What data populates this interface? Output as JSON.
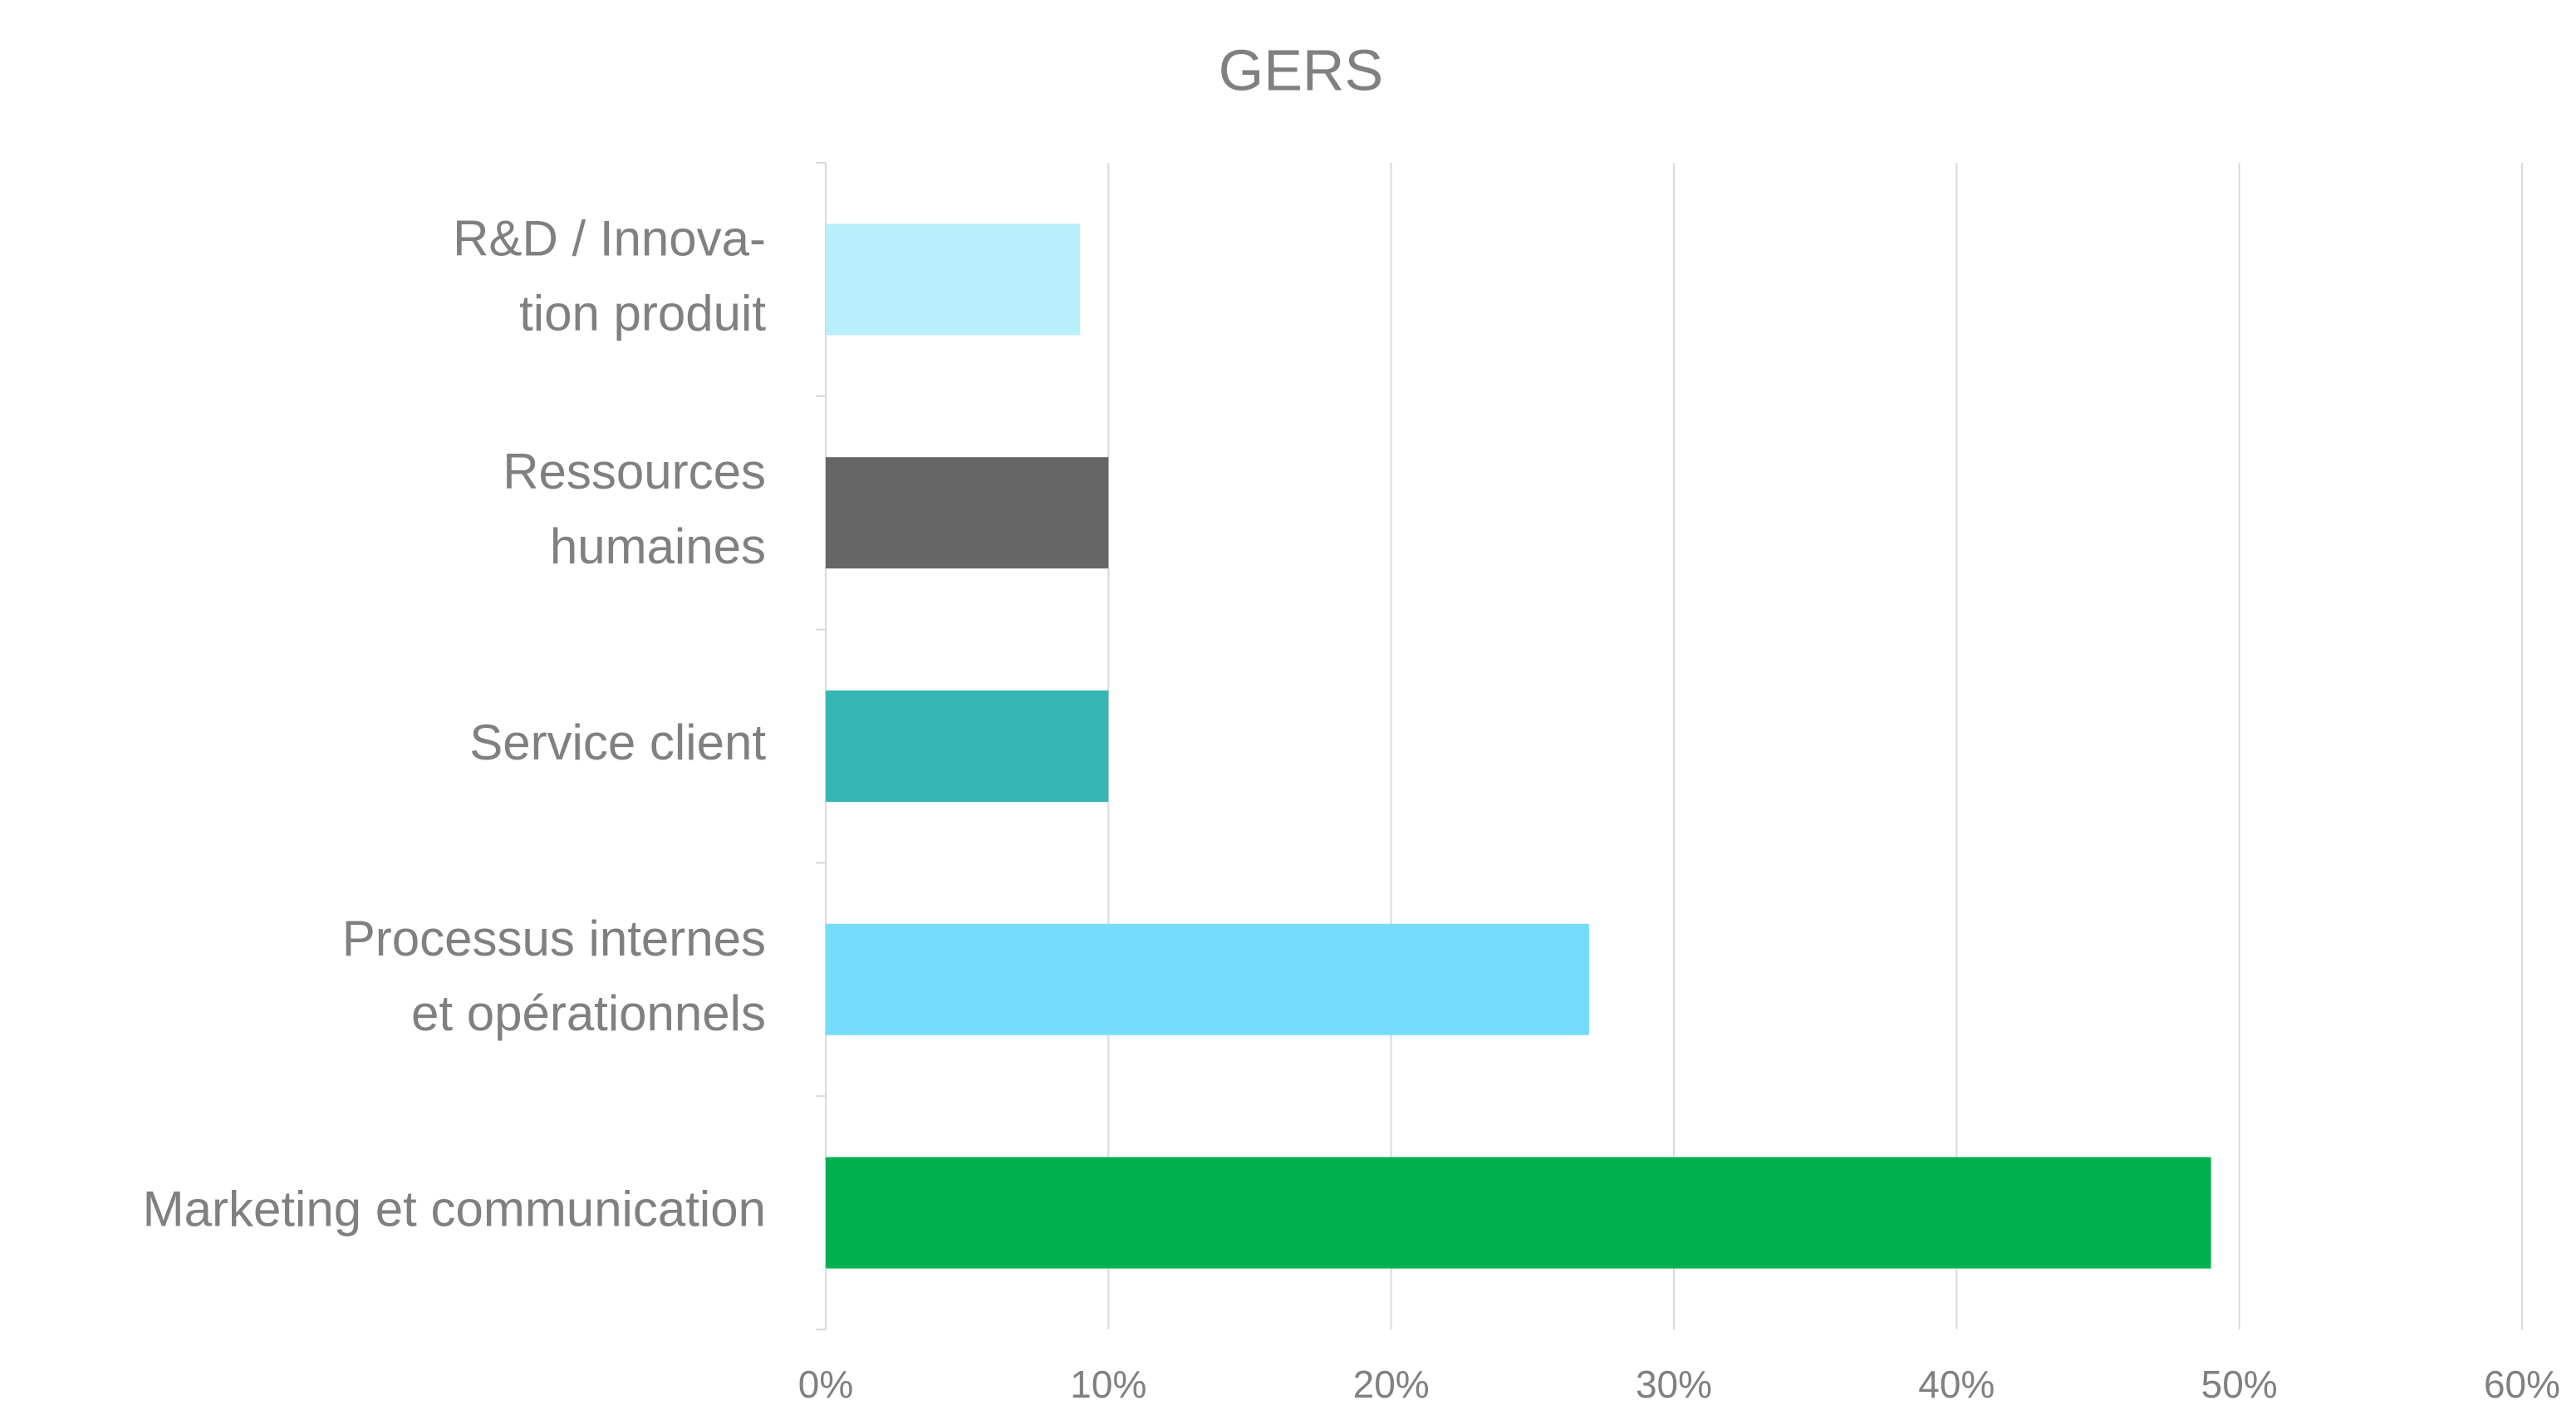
{
  "chart_data": {
    "type": "bar",
    "orientation": "horizontal",
    "title": "GERS",
    "categories": [
      "R&D / Innova-\ntion produit",
      "Ressources\nhumaines",
      "Service client",
      "Processus internes\net opérationnels",
      "Marketing et communication"
    ],
    "values": [
      9,
      10,
      10,
      27,
      49
    ],
    "colors": [
      "#b9eefc",
      "#666666",
      "#35b5b3",
      "#75ddfb",
      "#00b050"
    ],
    "xlim": [
      0,
      60
    ],
    "xticks": [
      {
        "value": 0,
        "label": "0%"
      },
      {
        "value": 10,
        "label": "10%"
      },
      {
        "value": 20,
        "label": "20%"
      },
      {
        "value": 30,
        "label": "30%"
      },
      {
        "value": 40,
        "label": "40%"
      },
      {
        "value": 50,
        "label": "50%"
      },
      {
        "value": 60,
        "label": "60%"
      }
    ],
    "grid": true
  }
}
